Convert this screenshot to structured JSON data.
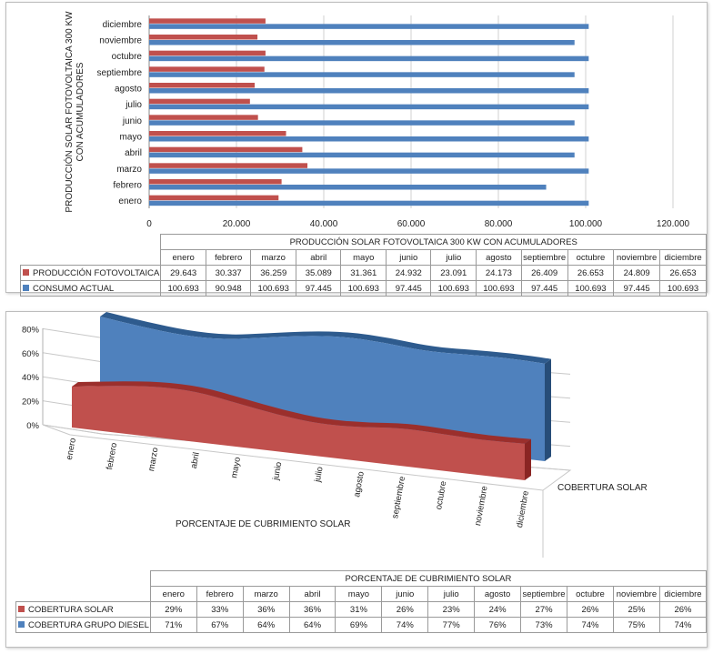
{
  "chart_data": [
    {
      "type": "bar",
      "orientation": "horizontal",
      "title": "PRODUCCIÓN SOLAR FOTOVOLTAICA 300 KW CON ACUMULADORES",
      "ylabel": "PRODUCCIÓN SOLAR FOTOVOLTAICA 300 KW CON ACUMULADORES",
      "table_title": "PRODUCCIÓN SOLAR FOTOVOLTAICA 300 KW CON ACUMULADORES",
      "categories": [
        "enero",
        "febrero",
        "marzo",
        "abril",
        "mayo",
        "junio",
        "julio",
        "agosto",
        "septiembre",
        "octubre",
        "noviembre",
        "diciembre"
      ],
      "series": [
        {
          "name": "PRODUCCIÓN FOTOVOLTAICA",
          "color": "#c0504d",
          "values": [
            29643,
            30337,
            36259,
            35089,
            31361,
            24932,
            23091,
            24173,
            26409,
            26653,
            24809,
            26653
          ],
          "labels": [
            "29.643",
            "30.337",
            "36.259",
            "35.089",
            "31.361",
            "24.932",
            "23.091",
            "24.173",
            "26.409",
            "26.653",
            "24.809",
            "26.653"
          ]
        },
        {
          "name": "CONSUMO ACTUAL",
          "color": "#4f81bd",
          "values": [
            100693,
            90948,
            100693,
            97445,
            100693,
            97445,
            100693,
            100693,
            97445,
            100693,
            97445,
            100693
          ],
          "labels": [
            "100.693",
            "90.948",
            "100.693",
            "97.445",
            "100.693",
            "97.445",
            "100.693",
            "100.693",
            "97.445",
            "100.693",
            "97.445",
            "100.693"
          ]
        }
      ],
      "xlim": [
        0,
        120000
      ],
      "xticks": [
        "0",
        "20.000",
        "40.000",
        "60.000",
        "80.000",
        "100.000",
        "120.000"
      ],
      "grid": true,
      "legend": "data-table"
    },
    {
      "type": "area",
      "variant": "3d-ribbon",
      "title": "PORCENTAJE DE CUBRIMIENTO SOLAR",
      "table_title": "PORCENTAJE DE CUBRIMIENTO SOLAR",
      "xlabel": "PORCENTAJE DE CUBRIMIENTO SOLAR",
      "depth_label": "COBERTURA SOLAR",
      "categories": [
        "enero",
        "febrero",
        "marzo",
        "abril",
        "mayo",
        "junio",
        "julio",
        "agosto",
        "septiembre",
        "octubre",
        "noviembre",
        "diciembre"
      ],
      "series": [
        {
          "name": "COBERTURA SOLAR",
          "color": "#c0504d",
          "values": [
            29,
            33,
            36,
            36,
            31,
            26,
            23,
            24,
            27,
            26,
            25,
            26
          ],
          "labels": [
            "29%",
            "33%",
            "36%",
            "36%",
            "31%",
            "26%",
            "23%",
            "24%",
            "27%",
            "26%",
            "25%",
            "26%"
          ]
        },
        {
          "name": "COBERTURA GRUPO DIESEL",
          "color": "#4f81bd",
          "values": [
            71,
            67,
            64,
            64,
            69,
            74,
            77,
            76,
            73,
            74,
            75,
            74
          ],
          "labels": [
            "71%",
            "67%",
            "64%",
            "64%",
            "69%",
            "74%",
            "77%",
            "76%",
            "73%",
            "74%",
            "75%",
            "74%"
          ]
        }
      ],
      "ylim": [
        0,
        80
      ],
      "yticks": [
        "0%",
        "20%",
        "40%",
        "60%",
        "80%"
      ],
      "grid": true,
      "legend": "data-table"
    }
  ]
}
